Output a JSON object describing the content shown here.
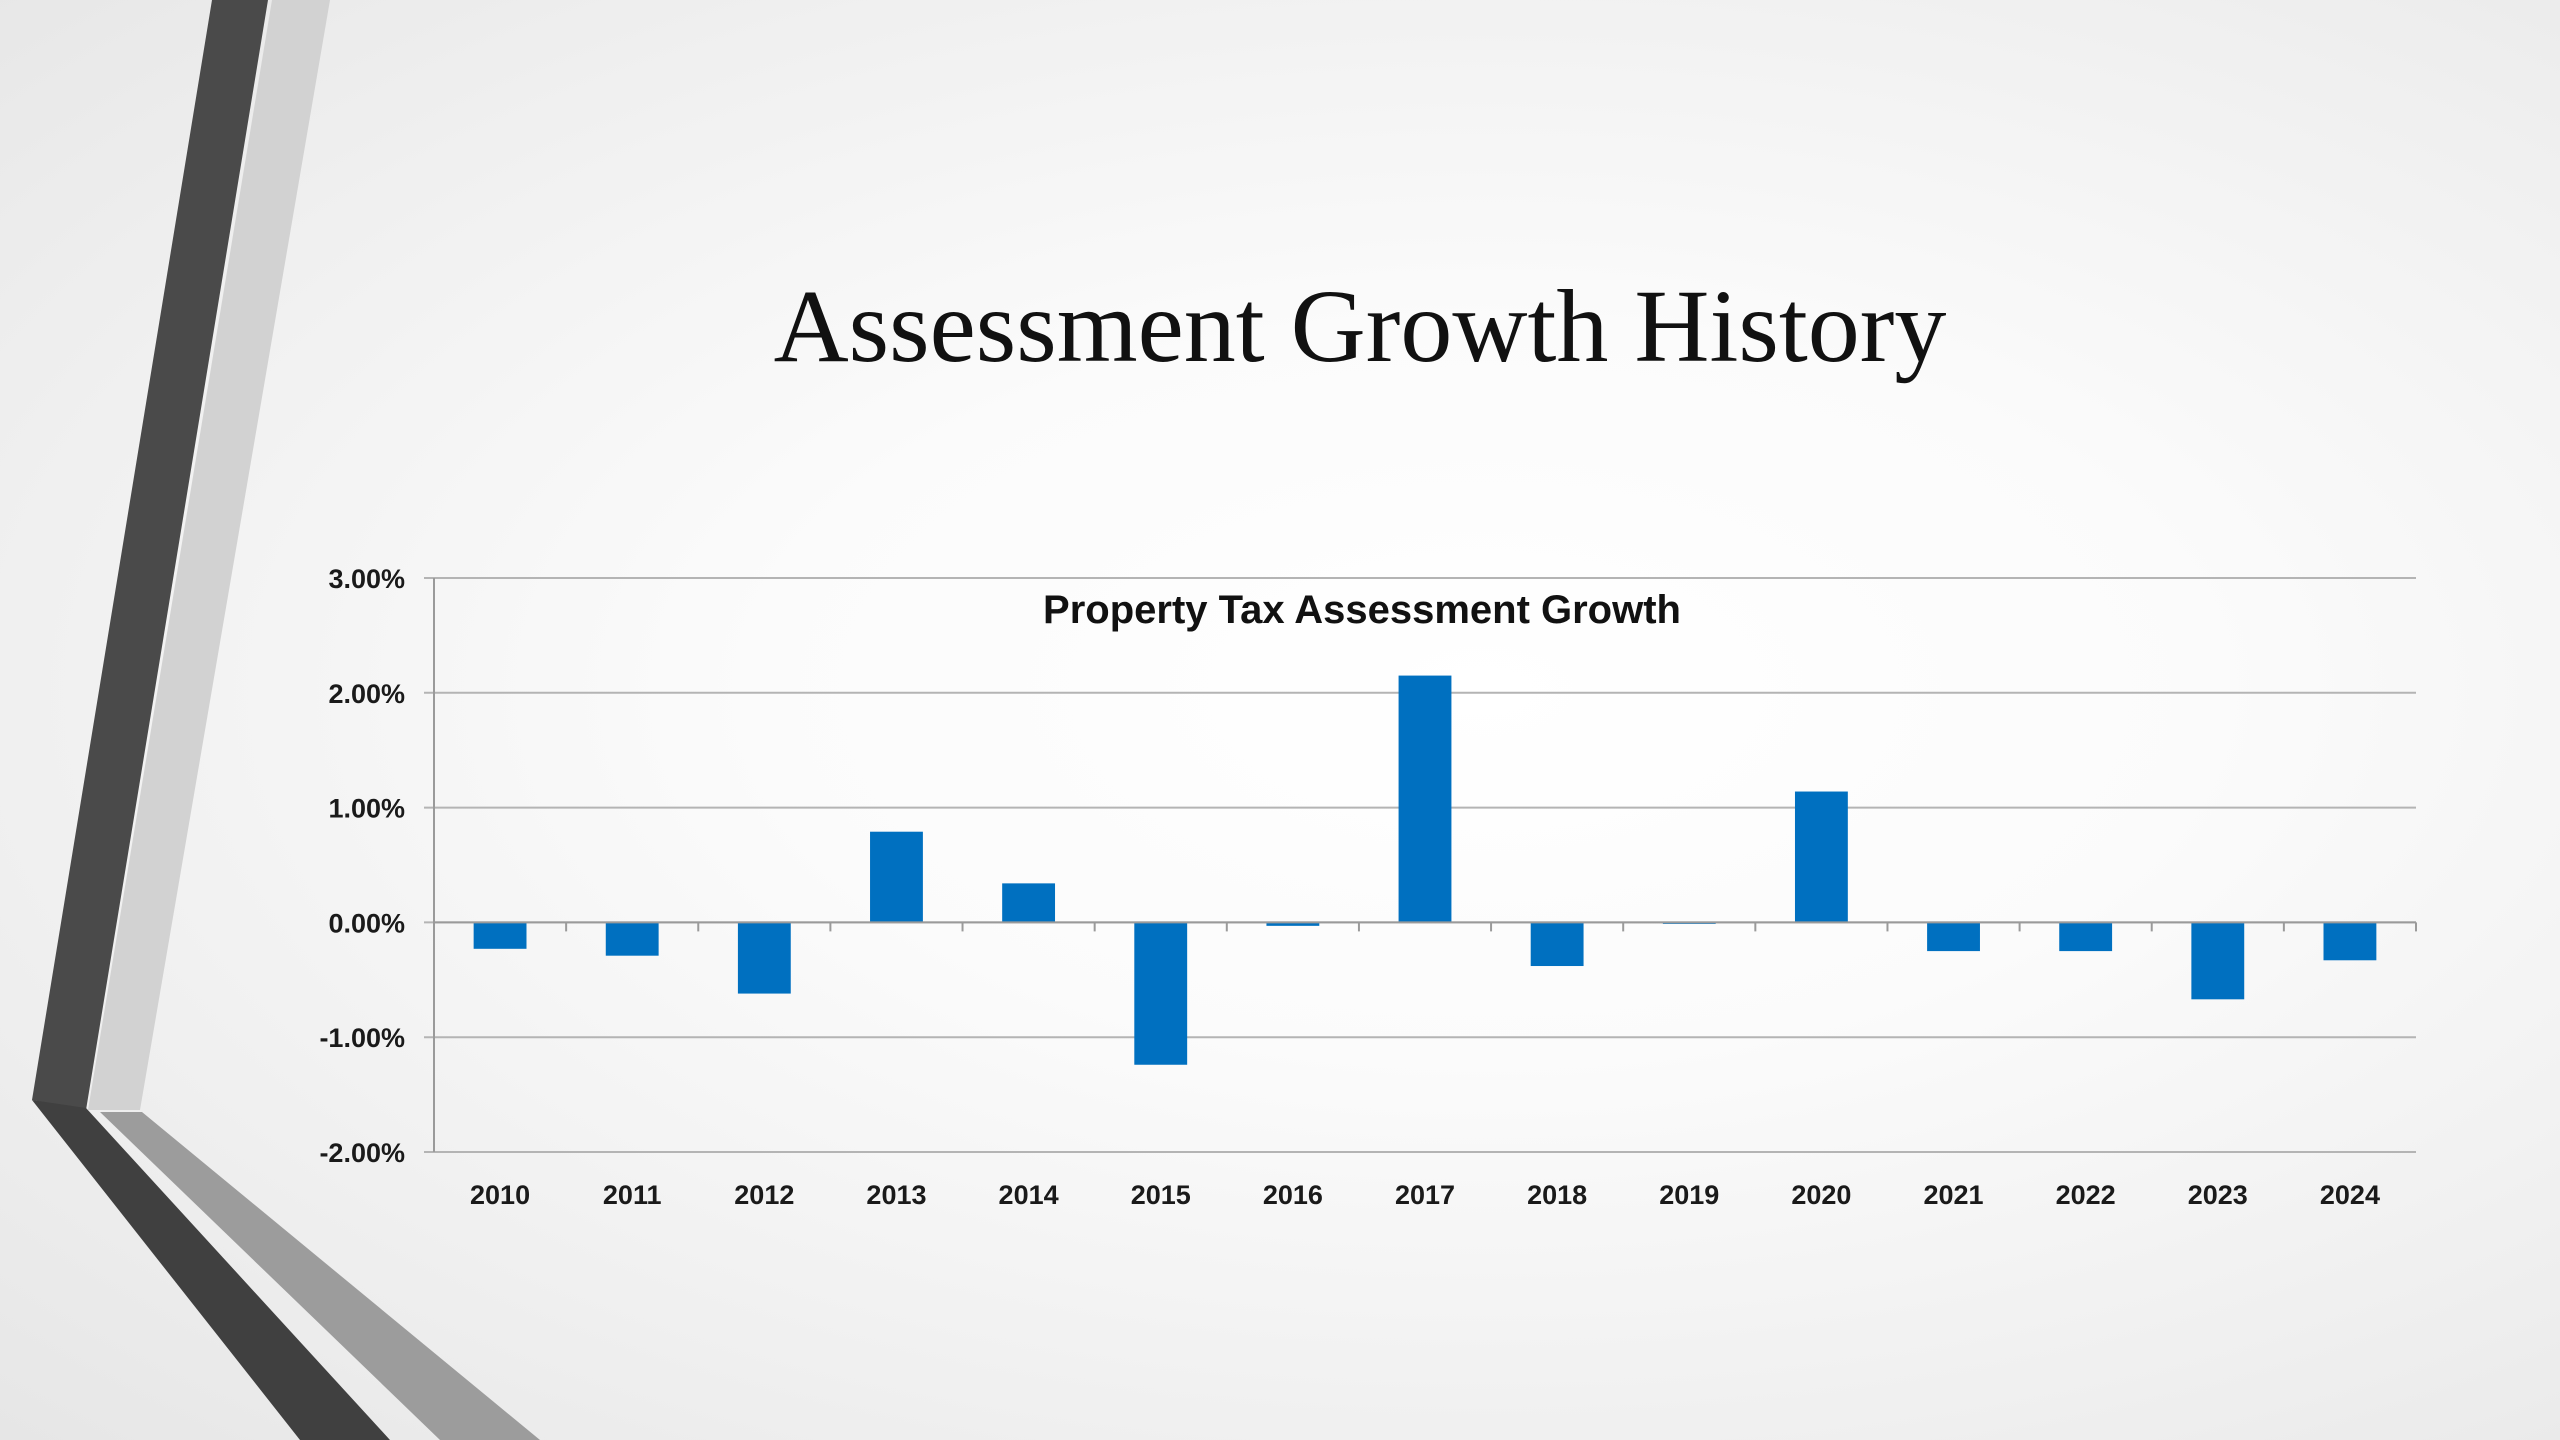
{
  "slide": {
    "title": "Assessment Growth History"
  },
  "colors": {
    "bar": "#0070C0",
    "gridline": "#b4b4b4",
    "axis": "#9a9a9a",
    "deco_dark": "#4a4a4a",
    "deco_mid": "#8e8e8e",
    "deco_light": "#d2d2d2"
  },
  "chart_data": {
    "type": "bar",
    "title": "Property Tax Assessment  Growth",
    "categories": [
      "2010",
      "2011",
      "2012",
      "2013",
      "2014",
      "2015",
      "2016",
      "2017",
      "2018",
      "2019",
      "2020",
      "2021",
      "2022",
      "2023",
      "2024"
    ],
    "series": [
      {
        "values": [
          -0.23,
          -0.29,
          -0.62,
          0.79,
          0.34,
          -1.24,
          -0.03,
          2.15,
          -0.38,
          -0.01,
          1.14,
          -0.25,
          -0.25,
          -0.67,
          -0.33
        ]
      }
    ],
    "unit": "%",
    "ylim": [
      -2.0,
      3.0
    ],
    "yticks": [
      3.0,
      2.0,
      1.0,
      0.0,
      -1.0,
      -2.0
    ],
    "ytick_labels": [
      "3.00%",
      "2.00%",
      "1.00%",
      "0.00%",
      "-1.00%",
      "-2.00%"
    ],
    "xlabel": "",
    "ylabel": "",
    "grid": true,
    "legend": "none"
  }
}
